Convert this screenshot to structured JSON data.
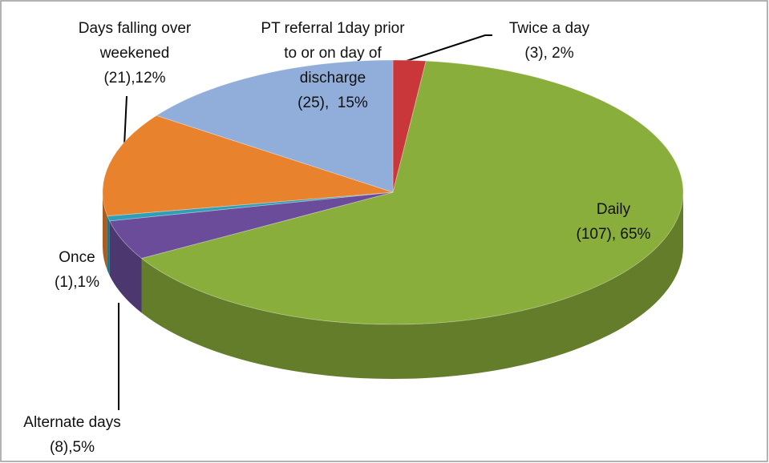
{
  "chart_data": {
    "type": "pie",
    "categories": [
      "Twice a day",
      "Daily",
      "Alternate days",
      "Once",
      "Days falling over weekened",
      "PT referral 1day prior to or on day of discharge"
    ],
    "values": [
      3,
      107,
      8,
      1,
      21,
      25
    ],
    "value_labels": [
      "(3), 2%",
      "(107), 65%",
      "(8),5%",
      "(1),1%",
      "(21),12%",
      "(25),  15%"
    ],
    "colors": [
      "#c9373a",
      "#8aae3b",
      "#6b4c9a",
      "#2f9fb7",
      "#e8822c",
      "#91aedb"
    ]
  }
}
